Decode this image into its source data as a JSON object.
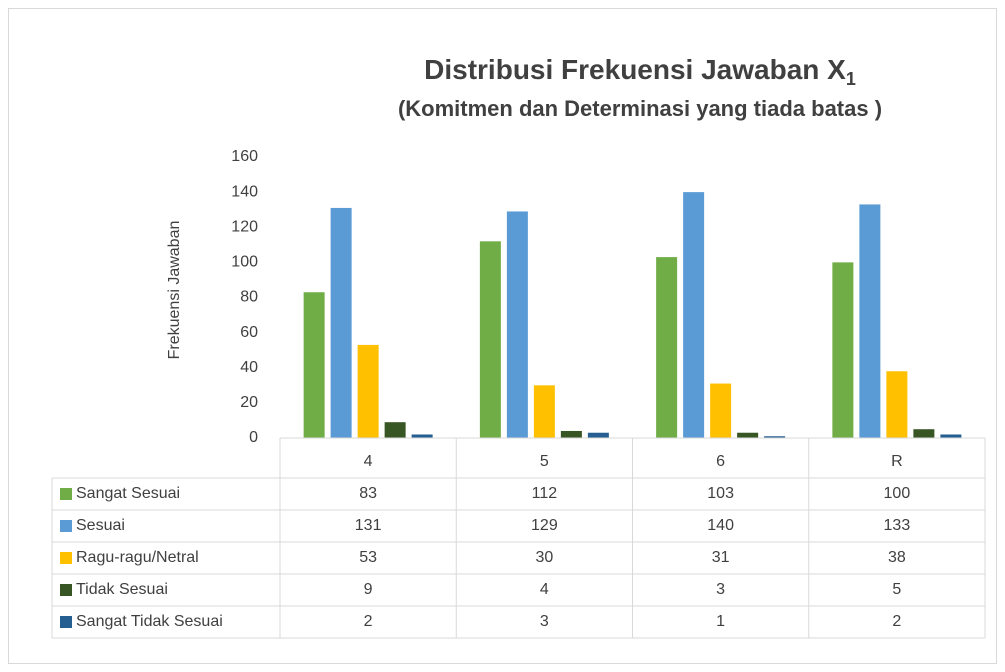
{
  "chart_data": {
    "type": "bar",
    "title": "Distribusi Frekuensi Jawaban X",
    "title_subscript": "1",
    "subtitle": "(Komitmen dan Determinasi yang tiada batas )",
    "y_label": "Frekuensi Jawaban",
    "categories": [
      "4",
      "5",
      "6",
      "R"
    ],
    "series": [
      {
        "name": "Sangat Sesuai",
        "color": "#70ad47",
        "values": [
          83,
          112,
          103,
          100
        ]
      },
      {
        "name": "Sesuai",
        "color": "#5b9bd5",
        "values": [
          131,
          129,
          140,
          133
        ]
      },
      {
        "name": "Ragu-ragu/Netral",
        "color": "#ffc000",
        "values": [
          53,
          30,
          31,
          38
        ]
      },
      {
        "name": "Tidak Sesuai",
        "color": "#375623",
        "values": [
          9,
          4,
          3,
          5
        ]
      },
      {
        "name": "Sangat Tidak Sesuai",
        "color": "#255e91",
        "values": [
          2,
          3,
          1,
          2
        ]
      }
    ],
    "ylim": [
      0,
      160
    ],
    "yticks": [
      0,
      20,
      40,
      60,
      80,
      100,
      120,
      140,
      160
    ],
    "grid": false
  }
}
